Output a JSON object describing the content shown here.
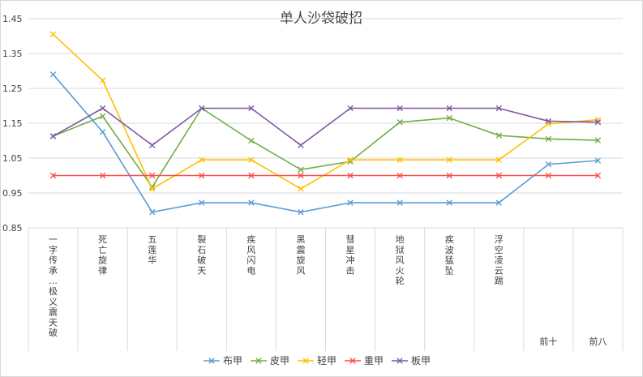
{
  "chart_data": {
    "type": "line",
    "title": "单人沙袋破招",
    "xlabel": "",
    "ylabel": "",
    "ylim": [
      0.85,
      1.45
    ],
    "yticks": [
      "0.85",
      "0.95",
      "1.05",
      "1.15",
      "1.25",
      "1.35",
      "1.45"
    ],
    "grid": true,
    "legend_position": "bottom",
    "categories": [
      "一字传承…极义震天破",
      "死亡旋律",
      "五莲华",
      "裂石破天",
      "疾风闪电",
      "黑震旋风",
      "彗星冲击",
      "地狱风火轮",
      "疾波猛坠",
      "浮空凌云踢",
      "前十",
      "前八"
    ],
    "series": [
      {
        "name": "布甲",
        "color": "#5b9bd5",
        "values": [
          1.29,
          1.125,
          0.895,
          0.922,
          0.922,
          0.895,
          0.922,
          0.922,
          0.922,
          0.922,
          1.032,
          1.043
        ]
      },
      {
        "name": "皮甲",
        "color": "#70ad47",
        "values": [
          1.113,
          1.17,
          0.967,
          1.193,
          1.1,
          1.017,
          1.04,
          1.153,
          1.165,
          1.115,
          1.105,
          1.101
        ]
      },
      {
        "name": "轻甲",
        "color": "#ffc000",
        "values": [
          1.405,
          1.273,
          0.962,
          1.045,
          1.045,
          0.962,
          1.045,
          1.045,
          1.045,
          1.045,
          1.148,
          1.16
        ]
      },
      {
        "name": "重甲",
        "color": "#ff4b4b",
        "values": [
          1.0,
          1.0,
          1.0,
          1.0,
          1.0,
          1.0,
          1.0,
          1.0,
          1.0,
          1.0,
          1.0,
          1.0
        ]
      },
      {
        "name": "板甲",
        "color": "#7e57a3",
        "values": [
          1.113,
          1.193,
          1.087,
          1.193,
          1.193,
          1.087,
          1.193,
          1.193,
          1.193,
          1.193,
          1.156,
          1.153
        ]
      }
    ]
  }
}
